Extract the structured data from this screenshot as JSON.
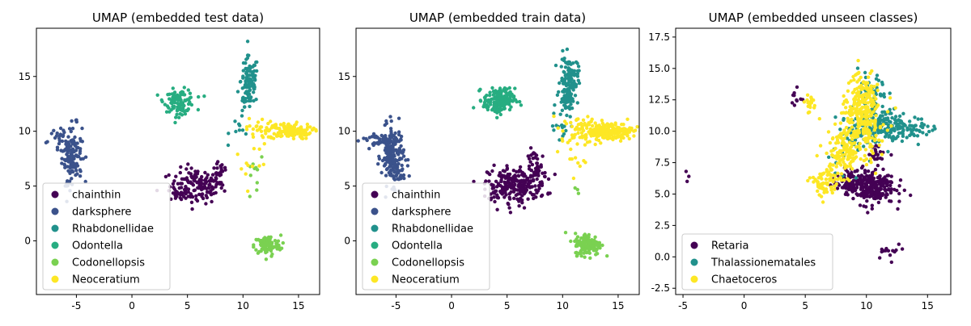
{
  "chart_data": [
    {
      "type": "scatter",
      "title": "UMAP (embedded test data)",
      "xlabel": "",
      "ylabel": "",
      "xlim": [
        -8.6,
        16.9
      ],
      "ylim": [
        -4.9,
        19.4
      ],
      "xticks": [
        -5,
        0,
        5,
        10,
        15
      ],
      "yticks": [
        0,
        5,
        10,
        15
      ],
      "legend_position": "lower-left",
      "series": [
        {
          "name": "chainthin",
          "color": "#440154",
          "clusters": [
            [
              5.8,
              5.0,
              1.2,
              0.8,
              140
            ],
            [
              8.0,
              6.3,
              0.35,
              0.9,
              25
            ],
            [
              4.0,
              4.3,
              0.5,
              0.25,
              15
            ]
          ]
        },
        {
          "name": "darksphere",
          "color": "#3b528b",
          "clusters": [
            [
              -5.4,
              8.0,
              0.45,
              1.3,
              110
            ],
            [
              -6.6,
              9.1,
              0.7,
              0.5,
              25
            ],
            [
              -5.3,
              6.3,
              0.35,
              0.7,
              20
            ]
          ]
        },
        {
          "name": "Rhabdonellidae",
          "color": "#21918c",
          "clusters": [
            [
              10.6,
              14.6,
              0.4,
              1.1,
              90
            ],
            [
              10.2,
              12.4,
              0.35,
              0.5,
              15
            ],
            [
              9.8,
              10.5,
              0.5,
              0.7,
              10
            ]
          ]
        },
        {
          "name": "Odontella",
          "color": "#27ad81",
          "clusters": [
            [
              4.3,
              12.8,
              0.7,
              0.5,
              90
            ],
            [
              4.3,
              12.1,
              0.3,
              0.5,
              20
            ]
          ]
        },
        {
          "name": "Codonellopsis",
          "color": "#7ad151",
          "clusters": [
            [
              12.2,
              -0.4,
              0.6,
              0.45,
              100
            ],
            [
              11.1,
              6.5,
              0.4,
              1.5,
              10
            ]
          ]
        },
        {
          "name": "Neoceratium",
          "color": "#fde725",
          "clusters": [
            [
              14.2,
              10.0,
              1.0,
              0.35,
              120
            ],
            [
              11.9,
              10.2,
              0.8,
              0.5,
              35
            ],
            [
              10.8,
              7.2,
              0.8,
              1.2,
              12
            ]
          ]
        }
      ]
    },
    {
      "type": "scatter",
      "title": "UMAP (embedded train data)",
      "xlabel": "",
      "ylabel": "",
      "xlim": [
        -8.6,
        16.9
      ],
      "ylim": [
        -4.9,
        19.4
      ],
      "xticks": [
        -5,
        0,
        5,
        10,
        15
      ],
      "yticks": [
        0,
        5,
        10,
        15
      ],
      "legend_position": "lower-left",
      "series": [
        {
          "name": "chainthin",
          "color": "#440154",
          "clusters": [
            [
              5.9,
              5.1,
              1.3,
              0.8,
              220
            ],
            [
              7.7,
              6.6,
              0.4,
              0.9,
              40
            ],
            [
              4.0,
              4.3,
              0.5,
              0.25,
              20
            ]
          ]
        },
        {
          "name": "darksphere",
          "color": "#3b528b",
          "clusters": [
            [
              -5.3,
              7.8,
              0.5,
              1.3,
              160
            ],
            [
              -6.6,
              9.1,
              0.7,
              0.5,
              40
            ],
            [
              -5.0,
              6.2,
              0.4,
              0.7,
              30
            ]
          ]
        },
        {
          "name": "Rhabdonellidae",
          "color": "#21918c",
          "clusters": [
            [
              10.6,
              14.6,
              0.4,
              1.1,
              130
            ],
            [
              10.1,
              12.4,
              0.35,
              0.5,
              25
            ],
            [
              9.7,
              10.4,
              0.6,
              0.8,
              15
            ]
          ]
        },
        {
          "name": "Odontella",
          "color": "#27ad81",
          "clusters": [
            [
              4.3,
              12.9,
              0.7,
              0.5,
              140
            ],
            [
              4.2,
              12.2,
              0.3,
              0.4,
              30
            ]
          ]
        },
        {
          "name": "Codonellopsis",
          "color": "#7ad151",
          "clusters": [
            [
              12.3,
              -0.3,
              0.6,
              0.5,
              160
            ],
            [
              11.3,
              4.7,
              0.2,
              0.2,
              3
            ]
          ]
        },
        {
          "name": "Neoceratium",
          "color": "#fde725",
          "clusters": [
            [
              14.1,
              10.0,
              1.1,
              0.4,
              190
            ],
            [
              11.8,
              10.1,
              0.9,
              0.6,
              60
            ],
            [
              10.6,
              7.8,
              0.7,
              1.0,
              15
            ]
          ]
        }
      ]
    },
    {
      "type": "scatter",
      "title": "UMAP (embedded unseen classes)",
      "xlabel": "",
      "ylabel": "",
      "xlim": [
        -5.6,
        16.9
      ],
      "ylim": [
        -3.0,
        18.2
      ],
      "xticks": [
        -5,
        0,
        5,
        10,
        15
      ],
      "yticks": [
        -2.5,
        0.0,
        2.5,
        5.0,
        7.5,
        10.0,
        12.5,
        15.0,
        17.5
      ],
      "legend_position": "lower-left",
      "series": [
        {
          "name": "Retaria",
          "color": "#440154",
          "clusters": [
            [
              10.3,
              5.6,
              1.0,
              0.7,
              260
            ],
            [
              8.6,
              5.9,
              0.7,
              0.4,
              60
            ],
            [
              12.0,
              0.5,
              0.6,
              0.3,
              15
            ],
            [
              4.3,
              12.8,
              0.3,
              0.5,
              10
            ],
            [
              -4.7,
              6.4,
              0.1,
              0.3,
              3
            ],
            [
              11.0,
              8.2,
              0.4,
              0.3,
              20
            ]
          ]
        },
        {
          "name": "Thalassionematales",
          "color": "#21918c",
          "clusters": [
            [
              11.0,
              10.5,
              1.2,
              0.7,
              180
            ],
            [
              13.5,
              10.2,
              1.2,
              0.4,
              50
            ],
            [
              10.5,
              12.8,
              0.6,
              1.0,
              50
            ],
            [
              8.8,
              9.0,
              1.0,
              1.0,
              30
            ]
          ]
        },
        {
          "name": "Chaetoceros",
          "color": "#fde725",
          "clusters": [
            [
              9.7,
              11.0,
              0.9,
              1.4,
              240
            ],
            [
              8.2,
              8.2,
              0.8,
              0.9,
              130
            ],
            [
              6.6,
              5.8,
              0.6,
              0.6,
              70
            ],
            [
              5.4,
              12.2,
              0.3,
              0.4,
              20
            ],
            [
              9.8,
              13.2,
              0.5,
              0.6,
              50
            ]
          ]
        }
      ]
    }
  ]
}
